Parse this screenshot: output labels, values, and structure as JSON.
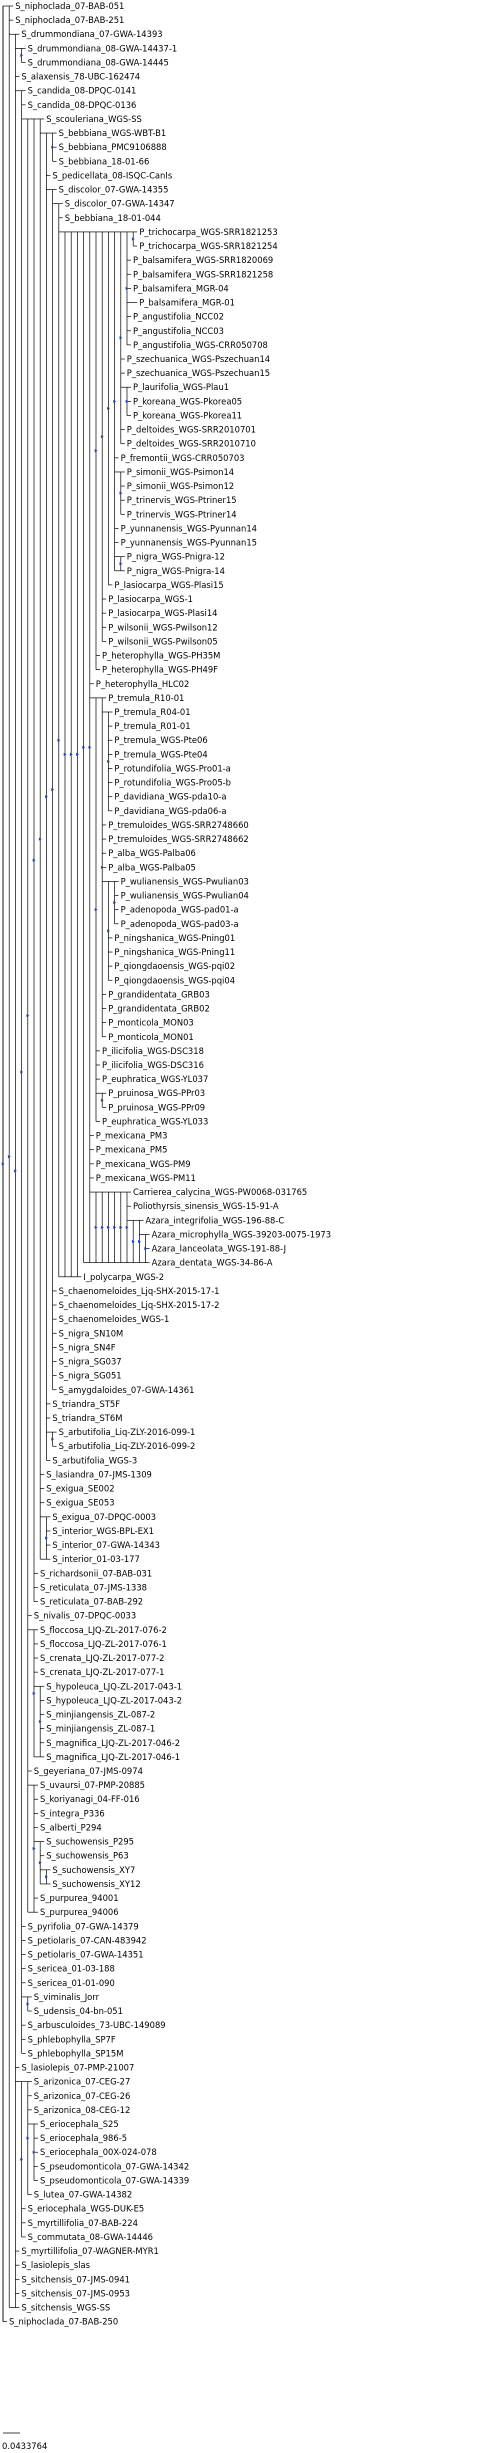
{
  "colors": {
    "branch": "#000000",
    "node_marker": "#1f3fbf",
    "label": "#000000"
  },
  "tree": {
    "scale_bar": {
      "label": "0.0433764"
    },
    "leaves": [
      {
        "label": "S_niphoclada_07-BAB-051",
        "depth": 1
      },
      {
        "label": "S_niphoclada_07-BAB-251",
        "depth": 1
      },
      {
        "label": "S_drummondiana_07-GWA-14393",
        "depth": 2
      },
      {
        "label": "S_drummondiana_08-GWA-14437-1",
        "depth": 3
      },
      {
        "label": "S_drummondiana_08-GWA-14445",
        "depth": 3
      },
      {
        "label": "S_alaxensis_78-UBC-162474",
        "depth": 2
      },
      {
        "label": "S_candida_08-DPQC-0141",
        "depth": 3
      },
      {
        "label": "S_candida_08-DPQC-0136",
        "depth": 3
      },
      {
        "label": "S_scouleriana_WGS-SS",
        "depth": 6
      },
      {
        "label": "S_bebbiana_WGS-WBT-B1",
        "depth": 8
      },
      {
        "label": "S_bebbiana_PMC9106888",
        "depth": 8
      },
      {
        "label": "S_bebbiana_18-01-66",
        "depth": 8
      },
      {
        "label": "S_pedicellata_08-ISQC-CanIs",
        "depth": 7
      },
      {
        "label": "S_discolor_07-GWA-14355",
        "depth": 8
      },
      {
        "label": "S_discolor_07-GWA-14347",
        "depth": 9
      },
      {
        "label": "S_bebbiana_18-01-044",
        "depth": 9
      },
      {
        "label": "P_trichocarpa_WGS-SRR1821253",
        "depth": 21
      },
      {
        "label": "P_trichocarpa_WGS-SRR1821254",
        "depth": 21
      },
      {
        "label": "P_balsamifera_WGS-SRR1820069",
        "depth": 20
      },
      {
        "label": "P_balsamifera_WGS-SRR1821258",
        "depth": 20
      },
      {
        "label": "P_balsamifera_MGR-04",
        "depth": 20
      },
      {
        "label": "P_balsamifera_MGR-01",
        "depth": 21
      },
      {
        "label": "P_angustifolia_NCC02",
        "depth": 20
      },
      {
        "label": "P_angustifolia_NCC03",
        "depth": 20
      },
      {
        "label": "P_angustifolia_WGS-CRR050708",
        "depth": 20
      },
      {
        "label": "P_szechuanica_WGS-Pszechuan14",
        "depth": 19
      },
      {
        "label": "P_szechuanica_WGS-Pszechuan15",
        "depth": 19
      },
      {
        "label": "P_laurifolia_WGS-Plau1",
        "depth": 20
      },
      {
        "label": "P_koreana_WGS-Pkorea05",
        "depth": 20
      },
      {
        "label": "P_koreana_WGS-Pkorea11",
        "depth": 20
      },
      {
        "label": "P_deltoides_WGS-SRR2010701",
        "depth": 19
      },
      {
        "label": "P_deltoides_WGS-SRR2010710",
        "depth": 19
      },
      {
        "label": "P_fremontii_WGS-CRR050703",
        "depth": 18
      },
      {
        "label": "P_simonii_WGS-Psimon14",
        "depth": 19
      },
      {
        "label": "P_simonii_WGS-Psimon12",
        "depth": 19
      },
      {
        "label": "P_trinervis_WGS-Ptriner15",
        "depth": 19
      },
      {
        "label": "P_trinervis_WGS-Ptriner14",
        "depth": 19
      },
      {
        "label": "P_yunnanensis_WGS-Pyunnan14",
        "depth": 18
      },
      {
        "label": "P_yunnanensis_WGS-Pyunnan15",
        "depth": 18
      },
      {
        "label": "P_nigra_WGS-Pnigra-12",
        "depth": 19
      },
      {
        "label": "P_nigra_WGS-Pnigra-14",
        "depth": 19
      },
      {
        "label": "P_lasiocarpa_WGS-Plasi15",
        "depth": 17
      },
      {
        "label": "P_lasiocarpa_WGS-1",
        "depth": 16
      },
      {
        "label": "P_lasiocarpa_WGS-Plasi14",
        "depth": 16
      },
      {
        "label": "P_wilsonii_WGS-Pwilson12",
        "depth": 16
      },
      {
        "label": "P_wilsonii_WGS-Pwilson05",
        "depth": 16
      },
      {
        "label": "P_heterophylla_WGS-PH35M",
        "depth": 15
      },
      {
        "label": "P_heterophylla_WGS-PH49F",
        "depth": 15
      },
      {
        "label": "P_heterophylla_HLC02",
        "depth": 14
      },
      {
        "label": "P_tremula_R10-01",
        "depth": 16
      },
      {
        "label": "P_tremula_R04-01",
        "depth": 17
      },
      {
        "label": "P_tremula_R01-01",
        "depth": 17
      },
      {
        "label": "P_tremula_WGS-Pte06",
        "depth": 17
      },
      {
        "label": "P_tremula_WGS-Pte04",
        "depth": 17
      },
      {
        "label": "P_rotundifolia_WGS-Pro01-a",
        "depth": 17
      },
      {
        "label": "P_rotundifolia_WGS-Pro05-b",
        "depth": 17
      },
      {
        "label": "P_davidiana_WGS-pda10-a",
        "depth": 17
      },
      {
        "label": "P_davidiana_WGS-pda06-a",
        "depth": 17
      },
      {
        "label": "P_tremuloides_WGS-SRR2748660",
        "depth": 16
      },
      {
        "label": "P_tremuloides_WGS-SRR2748662",
        "depth": 16
      },
      {
        "label": "P_alba_WGS-Palba06",
        "depth": 16
      },
      {
        "label": "P_alba_WGS-Palba05",
        "depth": 16
      },
      {
        "label": "P_wulianensis_WGS-Pwulian03",
        "depth": 18
      },
      {
        "label": "P_wulianensis_WGS-Pwulian04",
        "depth": 18
      },
      {
        "label": "P_adenopoda_WGS-pad01-a",
        "depth": 18
      },
      {
        "label": "P_adenopoda_WGS-pad03-a",
        "depth": 18
      },
      {
        "label": "P_ningshanica_WGS-Pning01",
        "depth": 17
      },
      {
        "label": "P_ningshanica_WGS-Pning11",
        "depth": 17
      },
      {
        "label": "P_qiongdaoensis_WGS-pqi02",
        "depth": 17
      },
      {
        "label": "P_qiongdaoensis_WGS-pqi04",
        "depth": 17
      },
      {
        "label": "P_grandidentata_GRB03",
        "depth": 16
      },
      {
        "label": "P_grandidentata_GRB02",
        "depth": 16
      },
      {
        "label": "P_monticola_MON03",
        "depth": 16
      },
      {
        "label": "P_monticola_MON01",
        "depth": 16
      },
      {
        "label": "P_ilicifolia_WGS-DSC318",
        "depth": 15
      },
      {
        "label": "P_ilicifolia_WGS-DSC316",
        "depth": 15
      },
      {
        "label": "P_euphratica_WGS-YL037",
        "depth": 15
      },
      {
        "label": "P_pruinosa_WGS-PPr03",
        "depth": 16
      },
      {
        "label": "P_pruinosa_WGS-PPr09",
        "depth": 16
      },
      {
        "label": "P_euphratica_WGS-YL033",
        "depth": 15
      },
      {
        "label": "P_mexicana_PM3",
        "depth": 14
      },
      {
        "label": "P_mexicana_PM5",
        "depth": 14
      },
      {
        "label": "P_mexicana_WGS-PM9",
        "depth": 14
      },
      {
        "label": "P_mexicana_WGS-PM11",
        "depth": 14
      },
      {
        "label": "Carrierea_calycina_WGS-PW0068-031765",
        "depth": 20
      },
      {
        "label": "Poliothyrsis_sinensis_WGS-15-91-A",
        "depth": 20
      },
      {
        "label": "Azara_integrifolia_WGS-196-88-C",
        "depth": 22
      },
      {
        "label": "Azara_microphylla_WGS-39203-0075-1973",
        "depth": 23
      },
      {
        "label": "Azara_lanceolata_WGS-191-88-J",
        "depth": 23
      },
      {
        "label": "Azara_dentata_WGS-34-86-A",
        "depth": 23
      },
      {
        "label": "I_polycarpa_WGS-2",
        "depth": 12
      },
      {
        "label": "S_chaenomeloides_Ljq-SHX-2015-17-1",
        "depth": 8
      },
      {
        "label": "S_chaenomeloides_Ljq-SHX-2015-17-2",
        "depth": 8
      },
      {
        "label": "S_chaenomeloides_WGS-1",
        "depth": 8
      },
      {
        "label": "S_nigra_SN10M",
        "depth": 8
      },
      {
        "label": "S_nigra_SN4F",
        "depth": 8
      },
      {
        "label": "S_nigra_SG037",
        "depth": 8
      },
      {
        "label": "S_nigra_SG051",
        "depth": 8
      },
      {
        "label": "S_amygdaloides_07-GWA-14361",
        "depth": 8
      },
      {
        "label": "S_triandra_ST5F",
        "depth": 7
      },
      {
        "label": "S_triandra_ST6M",
        "depth": 7
      },
      {
        "label": "S_arbutifolia_Liq-ZLY-2016-099-1",
        "depth": 8
      },
      {
        "label": "S_arbutifolia_Liq-ZLY-2016-099-2",
        "depth": 8
      },
      {
        "label": "S_arbutifolia_WGS-3",
        "depth": 7
      },
      {
        "label": "S_lasiandra_07-JMS-1309",
        "depth": 6
      },
      {
        "label": "S_exigua_SE002",
        "depth": 6
      },
      {
        "label": "S_exigua_SE053",
        "depth": 6
      },
      {
        "label": "S_exigua_07-DPQC-0003",
        "depth": 7
      },
      {
        "label": "S_interior_WGS-BPL-EX1",
        "depth": 7
      },
      {
        "label": "S_interior_07-GWA-14343",
        "depth": 7
      },
      {
        "label": "S_interior_01-03-177",
        "depth": 7
      },
      {
        "label": "S_richardsonii_07-BAB-031",
        "depth": 5
      },
      {
        "label": "S_reticulata_07-JMS-1338",
        "depth": 5
      },
      {
        "label": "S_reticulata_07-BAB-292",
        "depth": 5
      },
      {
        "label": "S_nivalis_07-DPQC-0033",
        "depth": 4
      },
      {
        "label": "S_floccosa_LJQ-ZL-2017-076-2",
        "depth": 5
      },
      {
        "label": "S_floccosa_LJQ-ZL-2017-076-1",
        "depth": 5
      },
      {
        "label": "S_crenata_LJQ-ZL-2017-077-2",
        "depth": 5
      },
      {
        "label": "S_crenata_LJQ-ZL-2017-077-1",
        "depth": 5
      },
      {
        "label": "S_hypoleuca_LJQ-ZL-2017-043-1",
        "depth": 6
      },
      {
        "label": "S_hypoleuca_LJQ-ZL-2017-043-2",
        "depth": 6
      },
      {
        "label": "S_minjiangensis_ZL-087-2",
        "depth": 6
      },
      {
        "label": "S_minjiangensis_ZL-087-1",
        "depth": 6
      },
      {
        "label": "S_magnifica_LJQ-ZL-2017-046-2",
        "depth": 6
      },
      {
        "label": "S_magnifica_LJQ-ZL-2017-046-1",
        "depth": 6
      },
      {
        "label": "S_geyeriana_07-JMS-0974",
        "depth": 4
      },
      {
        "label": "S_uvaursi_07-PMP-20885",
        "depth": 5
      },
      {
        "label": "S_koriyanagi_04-FF-016",
        "depth": 5
      },
      {
        "label": "S_integra_P336",
        "depth": 5
      },
      {
        "label": "S_alberti_P294",
        "depth": 5
      },
      {
        "label": "S_suchowensis_P295",
        "depth": 6
      },
      {
        "label": "S_suchowensis_P63",
        "depth": 6
      },
      {
        "label": "S_suchowensis_XY7",
        "depth": 7
      },
      {
        "label": "S_suchowensis_XY12",
        "depth": 7
      },
      {
        "label": "S_purpurea_94001",
        "depth": 5
      },
      {
        "label": "S_purpurea_94006",
        "depth": 5
      },
      {
        "label": "S_pyrifolia_07-GWA-14379",
        "depth": 3
      },
      {
        "label": "S_petiolaris_07-CAN-483942",
        "depth": 3
      },
      {
        "label": "S_petiolaris_07-GWA-14351",
        "depth": 3
      },
      {
        "label": "S_sericea_01-03-188",
        "depth": 3
      },
      {
        "label": "S_sericea_01-01-090",
        "depth": 3
      },
      {
        "label": "S_viminalis_Jorr",
        "depth": 4
      },
      {
        "label": "S_udensis_04-bn-051",
        "depth": 4
      },
      {
        "label": "S_arbusculoides_73-UBC-149089",
        "depth": 3
      },
      {
        "label": "S_phlebophylla_SP7F",
        "depth": 3
      },
      {
        "label": "S_phlebophylla_SP15M",
        "depth": 3
      },
      {
        "label": "S_lasiolepis_07-PMP-21007",
        "depth": 2
      },
      {
        "label": "S_arizonica_07-CEG-27",
        "depth": 4
      },
      {
        "label": "S_arizonica_07-CEG-26",
        "depth": 4
      },
      {
        "label": "S_arizonica_08-CEG-12",
        "depth": 4
      },
      {
        "label": "S_eriocephala_S25",
        "depth": 5
      },
      {
        "label": "S_eriocephala_986-5",
        "depth": 5
      },
      {
        "label": "S_eriocephala_00X-024-078",
        "depth": 5
      },
      {
        "label": "S_pseudomonticola_07-GWA-14342",
        "depth": 5
      },
      {
        "label": "S_pseudomonticola_07-GWA-14339",
        "depth": 5
      },
      {
        "label": "S_lutea_07-GWA-14382",
        "depth": 4
      },
      {
        "label": "S_eriocephala_WGS-DUK-E5",
        "depth": 3
      },
      {
        "label": "S_myrtillifolia_07-BAB-224",
        "depth": 3
      },
      {
        "label": "S_commutata_08-GWA-14446",
        "depth": 3
      },
      {
        "label": "S_myrtillifolia_07-WAGNER-MYR1",
        "depth": 2
      },
      {
        "label": "S_lasiolepis_slas",
        "depth": 2
      },
      {
        "label": "S_sitchensis_07-JMS-0941",
        "depth": 2
      },
      {
        "label": "S_sitchensis_07-JMS-0953",
        "depth": 2
      },
      {
        "label": "S_sitchensis_WGS-SS",
        "depth": 2
      },
      {
        "label": "S_niphoclada_07-BAB-250",
        "depth": 0
      }
    ]
  }
}
